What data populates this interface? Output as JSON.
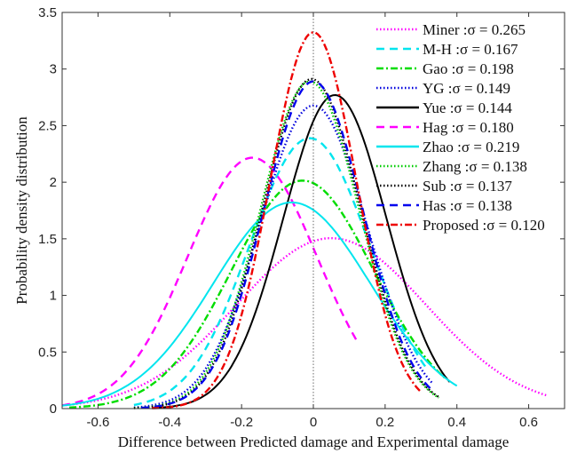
{
  "chart_data": {
    "type": "line",
    "xlabel": "Difference between Predicted damage and Experimental damage",
    "ylabel": "Probability density distribution",
    "xlim": [
      -0.7,
      0.7
    ],
    "ylim": [
      0,
      3.5
    ],
    "xticks": [
      "-0.6",
      "-0.4",
      "-0.2",
      "0",
      "0.2",
      "0.4",
      "0.6"
    ],
    "yticks": [
      "0",
      "0.5",
      "1",
      "1.5",
      "2",
      "2.5",
      "3",
      "3.5"
    ],
    "grid": false,
    "legend_position": "top-right",
    "reference_line_x": 0,
    "series": [
      {
        "name": "Miner",
        "label": "Miner :σ = 0.265",
        "sigma": 0.265,
        "mean": 0.05,
        "x_range": [
          -0.7,
          0.65
        ],
        "color": "#ff00ff",
        "style": "dotted"
      },
      {
        "name": "M-H",
        "label": "M-H :σ = 0.167",
        "sigma": 0.167,
        "mean": -0.01,
        "x_range": [
          -0.5,
          0.32
        ],
        "color": "#00e5ee",
        "style": "dashed"
      },
      {
        "name": "Gao",
        "label": "Gao :σ = 0.198",
        "sigma": 0.198,
        "mean": -0.03,
        "x_range": [
          -0.68,
          0.37
        ],
        "color": "#00dd00",
        "style": "dashdot"
      },
      {
        "name": "YG",
        "label": "YG :σ = 0.149",
        "sigma": 0.149,
        "mean": 0.0,
        "x_range": [
          -0.5,
          0.33
        ],
        "color": "#0000dd",
        "style": "dotted"
      },
      {
        "name": "Yue",
        "label": "Yue :σ = 0.144",
        "sigma": 0.144,
        "mean": 0.06,
        "x_range": [
          -0.45,
          0.38
        ],
        "color": "#000000",
        "style": "solid"
      },
      {
        "name": "Hag",
        "label": "Hag :σ = 0.180",
        "sigma": 0.18,
        "mean": -0.17,
        "x_range": [
          -0.7,
          0.12
        ],
        "color": "#ff00ff",
        "style": "dashed"
      },
      {
        "name": "Zhao",
        "label": "Zhao :σ = 0.219",
        "sigma": 0.219,
        "mean": -0.06,
        "x_range": [
          -0.7,
          0.4
        ],
        "color": "#00e5ee",
        "style": "solid"
      },
      {
        "name": "Zhang",
        "label": "Zhang :σ = 0.138",
        "sigma": 0.138,
        "mean": -0.01,
        "x_range": [
          -0.5,
          0.35
        ],
        "color": "#00cc00",
        "style": "dotted"
      },
      {
        "name": "Sub",
        "label": "Sub :σ = 0.137",
        "sigma": 0.137,
        "mean": -0.005,
        "x_range": [
          -0.5,
          0.35
        ],
        "color": "#000000",
        "style": "dotted"
      },
      {
        "name": "Has",
        "label": "Has :σ = 0.138",
        "sigma": 0.138,
        "mean": 0.0,
        "x_range": [
          -0.48,
          0.33
        ],
        "color": "#0000ee",
        "style": "dashed"
      },
      {
        "name": "Proposed",
        "label": "Proposed :σ = 0.120",
        "sigma": 0.12,
        "mean": 0.0,
        "x_range": [
          -0.45,
          0.3
        ],
        "color": "#ee0000",
        "style": "dashdot"
      }
    ]
  }
}
